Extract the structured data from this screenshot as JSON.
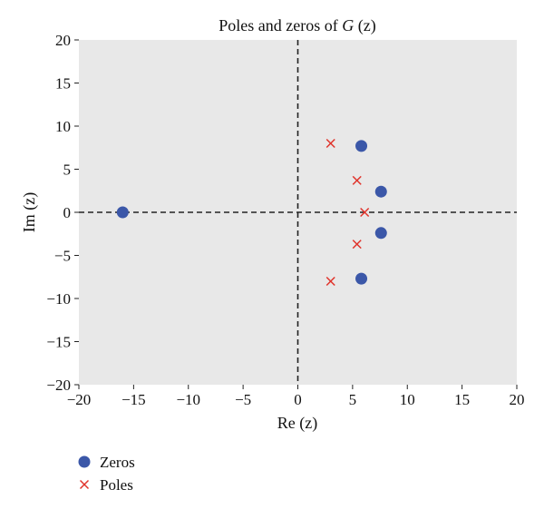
{
  "chart_data": {
    "type": "scatter",
    "title_main": "Poles and zeros of ",
    "title_var": "G",
    "title_rest": " (z)",
    "xlabel": "Re (z)",
    "ylabel": "Im (z)",
    "xlim": [
      -20,
      20
    ],
    "ylim": [
      -20,
      20
    ],
    "xticks": [
      -20,
      -15,
      -10,
      -5,
      0,
      5,
      10,
      15,
      20
    ],
    "yticks": [
      -20,
      -15,
      -10,
      -5,
      0,
      5,
      10,
      15,
      20
    ],
    "grid": false,
    "plot_background": "#e8e8e8",
    "reference_lines": "dashed lines at x = 0 and y = 0",
    "legend_position": "bottom-left, below plot",
    "series": [
      {
        "name": "Zeros",
        "marker": "filled-circle",
        "color": "#3b57a8",
        "points": [
          {
            "x": -16,
            "y": 0
          },
          {
            "x": 5.8,
            "y": 7.7
          },
          {
            "x": 7.6,
            "y": 2.4
          },
          {
            "x": 7.6,
            "y": -2.4
          },
          {
            "x": 5.8,
            "y": -7.7
          }
        ]
      },
      {
        "name": "Poles",
        "marker": "x-cross",
        "color": "#e0332b",
        "points": [
          {
            "x": 3.0,
            "y": 8.0
          },
          {
            "x": 5.4,
            "y": 3.7
          },
          {
            "x": 6.1,
            "y": 0
          },
          {
            "x": 5.4,
            "y": -3.7
          },
          {
            "x": 3.0,
            "y": -8.0
          }
        ]
      }
    ]
  }
}
